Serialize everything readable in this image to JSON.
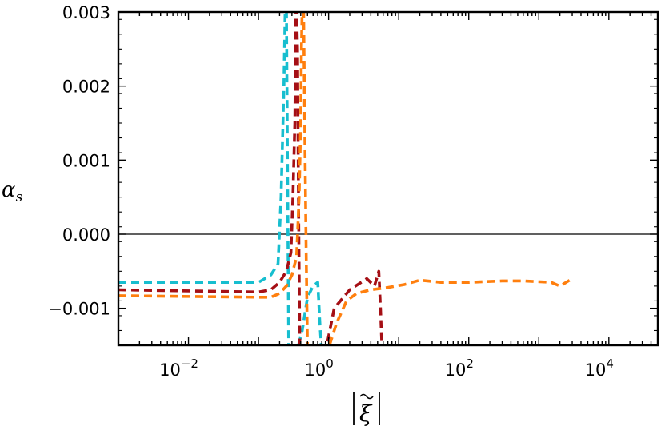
{
  "chart_data": {
    "type": "line",
    "title": "",
    "xlabel": "|ξ̃|",
    "ylabel": "α_s",
    "xscale": "log",
    "xlim": [
      0.001,
      50000
    ],
    "ylim": [
      -0.0015,
      0.003
    ],
    "yticks": [
      {
        "value": 0.003,
        "label": "0.003"
      },
      {
        "value": 0.002,
        "label": "0.002"
      },
      {
        "value": 0.001,
        "label": "0.001"
      },
      {
        "value": 0.0,
        "label": "0.000"
      },
      {
        "value": -0.001,
        "label": "−0.001"
      }
    ],
    "xticks": [
      {
        "value": 0.01,
        "base": "10",
        "exp": "−2"
      },
      {
        "value": 1,
        "base": "10",
        "exp": "0"
      },
      {
        "value": 100,
        "base": "10",
        "exp": "2"
      },
      {
        "value": 10000,
        "base": "10",
        "exp": "4"
      }
    ],
    "reference_line": 0.0,
    "grid": false,
    "series": [
      {
        "color": "#17becf",
        "points": [
          [
            0.001,
            -0.00065
          ],
          [
            0.1,
            -0.00065
          ],
          [
            0.15,
            -0.00055
          ],
          [
            0.19,
            -0.0004
          ],
          [
            0.21,
            0.0005
          ],
          [
            0.23,
            0.002
          ],
          [
            0.24,
            0.003
          ],
          [
            0.25,
            0.0032
          ],
          [
            0.27,
            -0.0016
          ],
          [
            0.35,
            -0.0016
          ],
          [
            0.42,
            -0.0013
          ],
          [
            0.5,
            -0.00085
          ],
          [
            0.6,
            -0.0007
          ],
          [
            0.7,
            -0.00065
          ],
          [
            0.75,
            -0.0012
          ],
          [
            0.8,
            -0.0016
          ]
        ]
      },
      {
        "color": "#a50f15",
        "points": [
          [
            0.001,
            -0.00075
          ],
          [
            0.1,
            -0.00078
          ],
          [
            0.15,
            -0.00075
          ],
          [
            0.2,
            -0.00065
          ],
          [
            0.25,
            -0.0005
          ],
          [
            0.29,
            -0.00025
          ],
          [
            0.31,
            0.0005
          ],
          [
            0.33,
            0.0015
          ],
          [
            0.34,
            0.0028
          ],
          [
            0.345,
            0.0032
          ],
          [
            0.36,
            0.0025
          ],
          [
            0.37,
            0.0008
          ],
          [
            0.38,
            -0.0005
          ],
          [
            0.39,
            -0.0016
          ],
          [
            0.9,
            -0.0016
          ],
          [
            1.2,
            -0.001
          ],
          [
            2,
            -0.00075
          ],
          [
            3.5,
            -0.0006
          ],
          [
            4.5,
            -0.0007
          ],
          [
            5.2,
            -0.0005
          ],
          [
            5.5,
            -0.001
          ],
          [
            5.8,
            -0.0016
          ]
        ]
      },
      {
        "color": "#ff7f0e",
        "points": [
          [
            0.001,
            -0.00083
          ],
          [
            0.1,
            -0.00085
          ],
          [
            0.15,
            -0.00085
          ],
          [
            0.2,
            -0.0008
          ],
          [
            0.25,
            -0.0007
          ],
          [
            0.3,
            -0.00055
          ],
          [
            0.35,
            -0.0003
          ],
          [
            0.38,
            0.0005
          ],
          [
            0.4,
            0.0015
          ],
          [
            0.41,
            0.0025
          ],
          [
            0.42,
            0.0031
          ],
          [
            0.44,
            0.003
          ],
          [
            0.46,
            0.0012
          ],
          [
            0.48,
            -0.0003
          ],
          [
            0.5,
            -0.0016
          ],
          [
            0.95,
            -0.0016
          ],
          [
            1.3,
            -0.0012
          ],
          [
            1.8,
            -0.0009
          ],
          [
            2.5,
            -0.0008
          ],
          [
            4,
            -0.00075
          ],
          [
            7,
            -0.00072
          ],
          [
            12,
            -0.00068
          ],
          [
            20,
            -0.00062
          ],
          [
            40,
            -0.00065
          ],
          [
            100,
            -0.00065
          ],
          [
            300,
            -0.00063
          ],
          [
            600,
            -0.00063
          ],
          [
            1500,
            -0.00065
          ],
          [
            2000,
            -0.0007
          ],
          [
            3000,
            -0.0006
          ]
        ]
      }
    ]
  }
}
